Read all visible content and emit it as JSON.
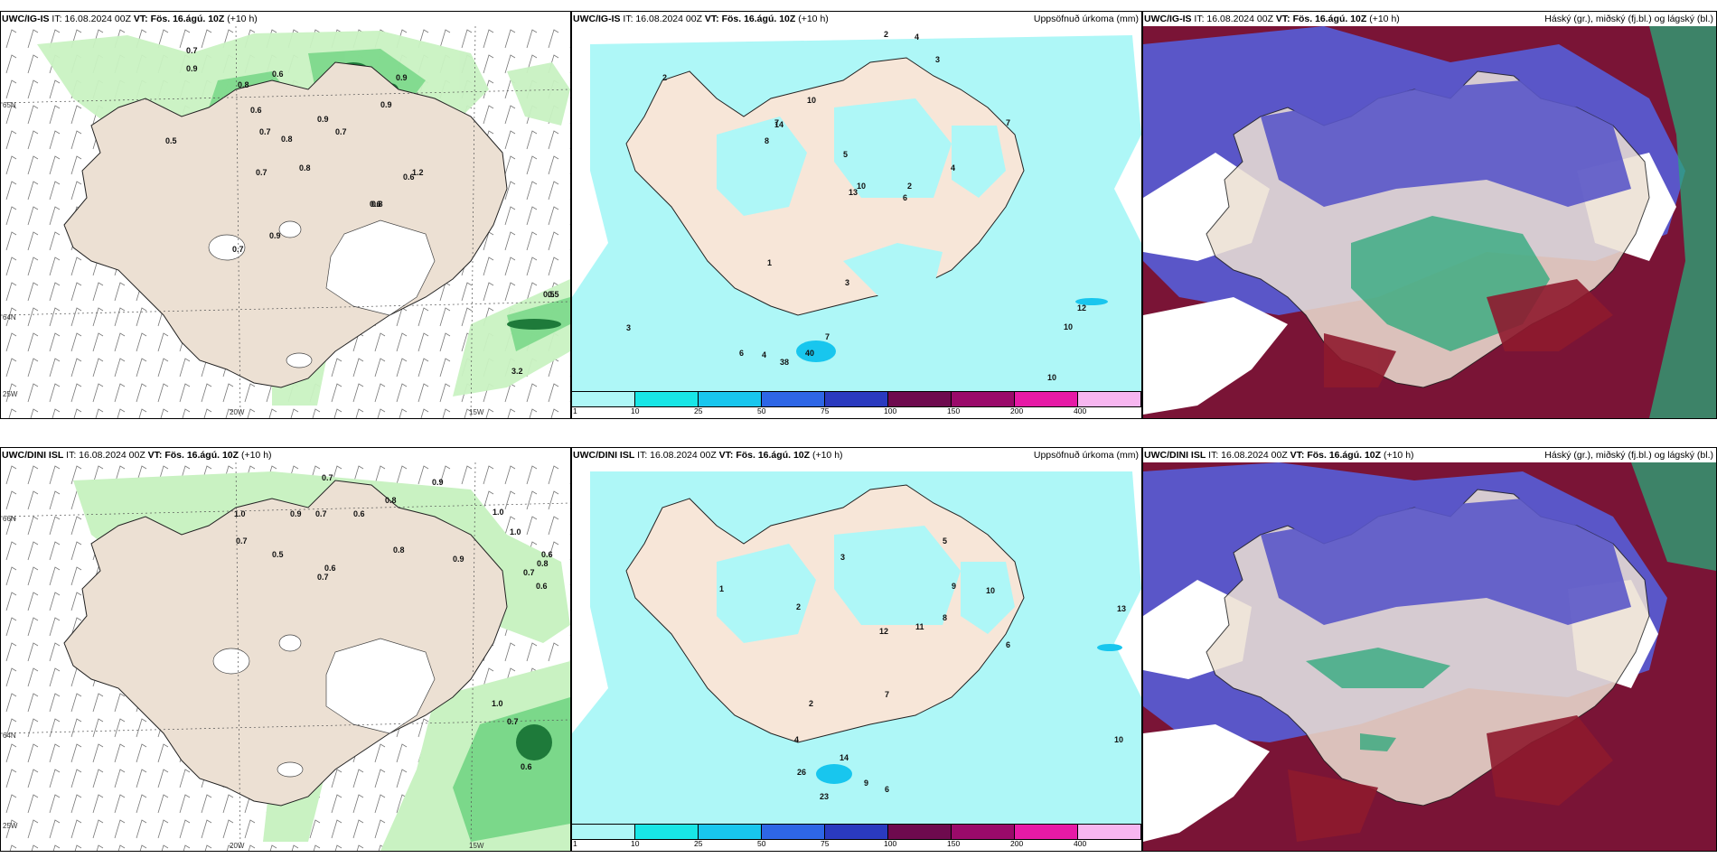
{
  "panels": {
    "p1": {
      "model": "UWC/IG-IS",
      "it": "IT: 16.08.2024 00Z",
      "vt": "VT: Fös. 16.ágú. 10Z",
      "lead": "(+10 h)",
      "product": "",
      "lat1": "65N",
      "lat2": "64N",
      "lat3": "25W",
      "lon1": "20W",
      "lon2": "15W"
    },
    "p2": {
      "model": "UWC/IG-IS",
      "it": "IT: 16.08.2024 00Z",
      "vt": "VT: Fös. 16.ágú. 10Z",
      "lead": "(+10 h)",
      "product": "Uppsöfnuð úrkoma (mm)"
    },
    "p3": {
      "model": "UWC/IG-IS",
      "it": "IT: 16.08.2024 00Z",
      "vt": "VT: Fös. 16.ágú. 10Z",
      "lead": "(+10 h)",
      "product": "Háský (gr.), miðský (fj.bl.) og lágský (bl.)"
    },
    "p4": {
      "model": "UWC/DINI ISL",
      "it": "IT: 16.08.2024 00Z",
      "vt": "VT: Fös. 16.ágú. 10Z",
      "lead": "(+10 h)",
      "product": "",
      "lat1": "66N",
      "lat2": "64N",
      "lat3": "25W",
      "lon1": "20W",
      "lon2": "15W",
      "lat_r": "66N"
    },
    "p5": {
      "model": "UWC/DINI ISL",
      "it": "IT: 16.08.2024 00Z",
      "vt": "VT: Fös. 16.ágú. 10Z",
      "lead": "(+10 h)",
      "product": "Uppsöfnuð úrkoma (mm)"
    },
    "p6": {
      "model": "UWC/DINI ISL",
      "it": "IT: 16.08.2024 00Z",
      "vt": "VT: Fös. 16.ágú. 10Z",
      "lead": "(+10 h)",
      "product": "Háský (gr.), miðský (fj.bl.) og lágský (bl.)"
    }
  },
  "legend": {
    "ticks": [
      "1",
      "10",
      "25",
      "50",
      "75",
      "100",
      "150",
      "200",
      "400"
    ],
    "colors": [
      "#aef7f7",
      "#18e6e6",
      "#18c6ee",
      "#2e66e6",
      "#2a3abf",
      "#6e0a4e",
      "#9a0a6a",
      "#e61aa6",
      "#f7b6f0"
    ]
  },
  "labels": {
    "p1": [
      {
        "t": "0.7"
      },
      {
        "t": "0.9"
      },
      {
        "t": "0.8"
      },
      {
        "t": "0.5"
      },
      {
        "t": "0.6"
      },
      {
        "t": "0.9"
      },
      {
        "t": "0.6"
      },
      {
        "t": "0.7"
      },
      {
        "t": "0.8"
      },
      {
        "t": "0.8"
      },
      {
        "t": "0.7"
      },
      {
        "t": "0.9"
      },
      {
        "t": "0.9"
      },
      {
        "t": "0.7"
      },
      {
        "t": "0.6"
      },
      {
        "t": "1.2"
      },
      {
        "t": "0.8"
      },
      {
        "t": "0.6"
      },
      {
        "t": "0.7"
      },
      {
        "t": "0.9"
      },
      {
        "t": "0.5"
      },
      {
        "t": "0.5"
      },
      {
        "t": "3.2"
      }
    ],
    "p2": [
      {
        "t": "2"
      },
      {
        "t": "4"
      },
      {
        "t": "3"
      },
      {
        "t": "2"
      },
      {
        "t": "10"
      },
      {
        "t": "7"
      },
      {
        "t": "14"
      },
      {
        "t": "8"
      },
      {
        "t": "5"
      },
      {
        "t": "10"
      },
      {
        "t": "13"
      },
      {
        "t": "6"
      },
      {
        "t": "1"
      },
      {
        "t": "3"
      },
      {
        "t": "2"
      },
      {
        "t": "4"
      },
      {
        "t": "7"
      },
      {
        "t": "12"
      },
      {
        "t": "10"
      },
      {
        "t": "10"
      },
      {
        "t": "6"
      },
      {
        "t": "4"
      },
      {
        "t": "38"
      },
      {
        "t": "40"
      },
      {
        "t": "7"
      },
      {
        "t": "3"
      }
    ],
    "p4": [
      {
        "t": "0.7"
      },
      {
        "t": "0.9"
      },
      {
        "t": "0.8"
      },
      {
        "t": "1.0"
      },
      {
        "t": "0.9"
      },
      {
        "t": "0.7"
      },
      {
        "t": "0.6"
      },
      {
        "t": "0.7"
      },
      {
        "t": "0.5"
      },
      {
        "t": "0.8"
      },
      {
        "t": "0.7"
      },
      {
        "t": "1.0"
      },
      {
        "t": "0.6"
      },
      {
        "t": "0.9"
      },
      {
        "t": "0.7"
      },
      {
        "t": "1.0"
      },
      {
        "t": "0.6"
      },
      {
        "t": "0.8"
      },
      {
        "t": "0.6"
      },
      {
        "t": "1.0"
      },
      {
        "t": "0.7"
      },
      {
        "t": "0.6"
      }
    ],
    "p5": [
      {
        "t": "1"
      },
      {
        "t": "2"
      },
      {
        "t": "3"
      },
      {
        "t": "5"
      },
      {
        "t": "9"
      },
      {
        "t": "10"
      },
      {
        "t": "8"
      },
      {
        "t": "6"
      },
      {
        "t": "12"
      },
      {
        "t": "11"
      },
      {
        "t": "7"
      },
      {
        "t": "4"
      },
      {
        "t": "13"
      },
      {
        "t": "10"
      },
      {
        "t": "26"
      },
      {
        "t": "14"
      },
      {
        "t": "23"
      },
      {
        "t": "9"
      },
      {
        "t": "2"
      },
      {
        "t": "6"
      }
    ]
  }
}
